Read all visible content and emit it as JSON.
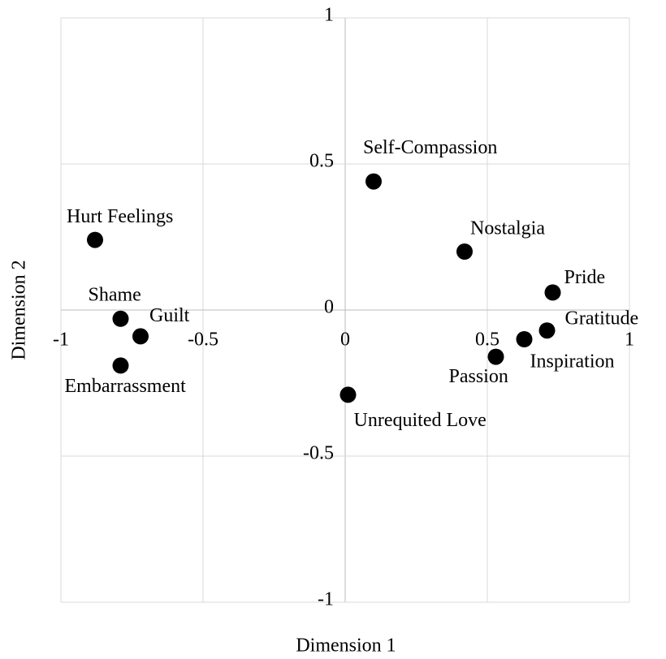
{
  "chart_data": {
    "type": "scatter",
    "x_label": "Dimension 1",
    "y_label": "Dimension 2",
    "labels": [
      "Self-Compassion",
      "Hurt Feelings",
      "Nostalgia",
      "Pride",
      "Shame",
      "Guilt",
      "Gratitude",
      "Inspiration",
      "Passion",
      "Embarrassment",
      "Unrequited Love"
    ],
    "x": [
      0.1,
      -0.88,
      0.42,
      0.73,
      -0.79,
      -0.72,
      0.71,
      0.63,
      0.53,
      -0.79,
      0.01
    ],
    "values": [
      0.44,
      0.24,
      0.2,
      0.06,
      -0.03,
      -0.09,
      -0.07,
      -0.1,
      -0.16,
      -0.19,
      -0.29
    ],
    "color": "#000000",
    "xlim": [
      -1,
      1
    ],
    "ylim": [
      -1,
      1
    ],
    "xticks": [
      -1,
      -0.5,
      0,
      0.5,
      1
    ],
    "yticks": [
      -1,
      -0.5,
      0,
      0.5,
      1
    ],
    "grid": true
  }
}
